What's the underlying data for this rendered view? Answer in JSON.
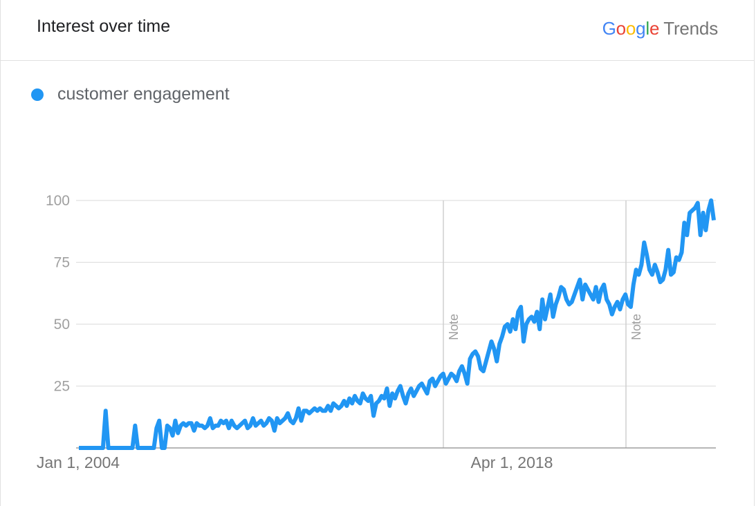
{
  "header": {
    "title": "Interest over time",
    "logo_google": "Google",
    "logo_trends": "Trends"
  },
  "colors": {
    "series": "#2196f3",
    "gridline": "#e0e0e0",
    "baseline": "#9e9e9e",
    "note_line": "#cfcfcf",
    "google_blue": "#4285f4",
    "google_red": "#ea4335",
    "google_yellow": "#fbbc05",
    "google_green": "#34a853"
  },
  "legend": {
    "label": "customer engagement"
  },
  "chart_data": {
    "type": "line",
    "title": "Interest over time",
    "xlabel": "",
    "ylabel": "",
    "ylim": [
      0,
      100
    ],
    "yticks": [
      "100",
      "75",
      "50",
      "25"
    ],
    "yticks_values": [
      100,
      75,
      50,
      25
    ],
    "x_start": "Jan 1, 2004",
    "x_tick_labels": [
      "Jan 1, 2004",
      "Apr 1, 2018"
    ],
    "notes": [
      "Note",
      "Note"
    ],
    "grid": true,
    "legend_position": "top-left",
    "series": [
      {
        "name": "customer engagement",
        "values": [
          0,
          0,
          0,
          0,
          0,
          0,
          0,
          0,
          0,
          0,
          15,
          0,
          0,
          0,
          0,
          0,
          0,
          0,
          0,
          0,
          0,
          9,
          0,
          0,
          0,
          0,
          0,
          0,
          0,
          8,
          11,
          0,
          0,
          9,
          8,
          5,
          11,
          6,
          9,
          10,
          9,
          10,
          10,
          7,
          10,
          9,
          9,
          8,
          9,
          12,
          8,
          9,
          9,
          11,
          10,
          11,
          8,
          11,
          9,
          8,
          9,
          10,
          11,
          8,
          9,
          12,
          9,
          10,
          11,
          9,
          10,
          12,
          11,
          7,
          12,
          10,
          11,
          12,
          14,
          11,
          10,
          12,
          16,
          11,
          15,
          15,
          14,
          15,
          16,
          15,
          16,
          15,
          15,
          17,
          15,
          18,
          17,
          16,
          17,
          19,
          17,
          20,
          18,
          21,
          19,
          18,
          22,
          20,
          19,
          21,
          13,
          18,
          19,
          21,
          20,
          24,
          17,
          22,
          20,
          23,
          25,
          21,
          18,
          22,
          24,
          21,
          23,
          25,
          26,
          24,
          22,
          27,
          28,
          25,
          27,
          29,
          30,
          26,
          28,
          30,
          29,
          27,
          31,
          33,
          30,
          26,
          36,
          38,
          39,
          37,
          32,
          31,
          35,
          39,
          43,
          40,
          35,
          42,
          45,
          49,
          50,
          47,
          52,
          48,
          55,
          57,
          43,
          50,
          52,
          53,
          51,
          55,
          48,
          60,
          52,
          57,
          62,
          53,
          58,
          61,
          65,
          64,
          60,
          58,
          59,
          62,
          65,
          68,
          60,
          66,
          64,
          62,
          60,
          65,
          59,
          64,
          66,
          60,
          58,
          54,
          57,
          59,
          56,
          60,
          62,
          58,
          57,
          66,
          72,
          70,
          74,
          83,
          78,
          72,
          70,
          74,
          71,
          67,
          68,
          72,
          80,
          70,
          71,
          77,
          76,
          79,
          91,
          86,
          95,
          96,
          97,
          99,
          86,
          95,
          88,
          96,
          100,
          92
        ]
      }
    ]
  }
}
